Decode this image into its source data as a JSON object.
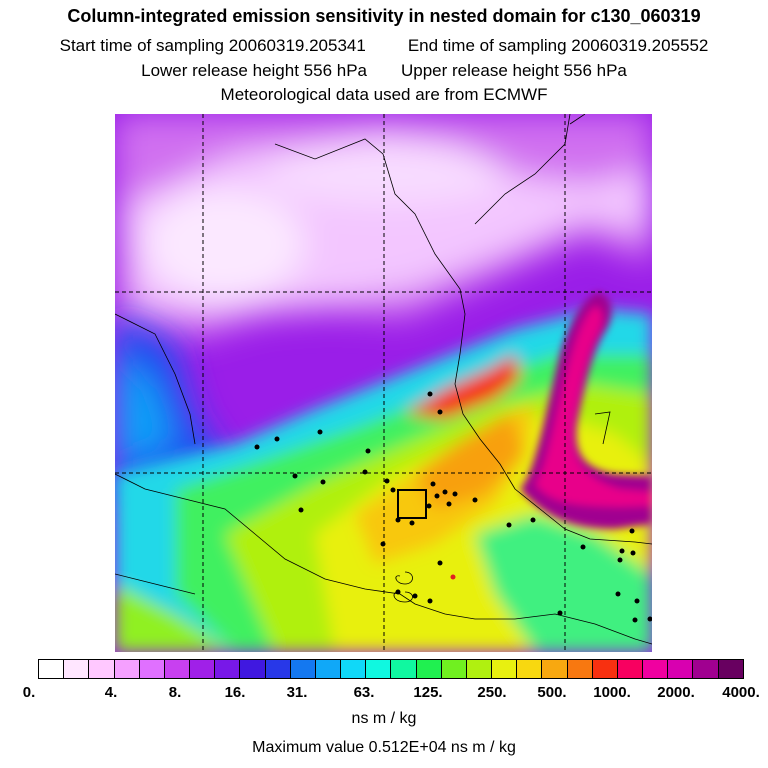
{
  "title": "Column-integrated emission sensitivity in nested domain for c130_060319",
  "start_label": "Start time of sampling 20060319.205341",
  "end_label": "End time of sampling 20060319.205552",
  "lower_label": "Lower release height  556 hPa",
  "upper_label": "Upper release height  556 hPa",
  "met_label": "Meteorological data used are from ECMWF",
  "colorbar": {
    "colors": [
      "#ffffff",
      "#ffe6ff",
      "#ffc8ff",
      "#f5a0ff",
      "#e070ff",
      "#c840f0",
      "#a020e8",
      "#7818e8",
      "#4018e0",
      "#2838e8",
      "#1478f0",
      "#10a8f8",
      "#10d8f8",
      "#10f8e0",
      "#10f8a0",
      "#20f050",
      "#70f020",
      "#b0f010",
      "#e8f010",
      "#f8d810",
      "#f8a810",
      "#f87810",
      "#f83010",
      "#f80060",
      "#f000a0",
      "#d800b0",
      "#a00090",
      "#680060"
    ],
    "ticks": [
      "0.",
      "4.",
      "8.",
      "16.",
      "31.",
      "63.",
      "125.",
      "250.",
      "500.",
      "1000.",
      "2000.",
      "4000."
    ],
    "units": "ns m / kg"
  },
  "max_label": "Maximum value  0.512E+04 ns m / kg"
}
